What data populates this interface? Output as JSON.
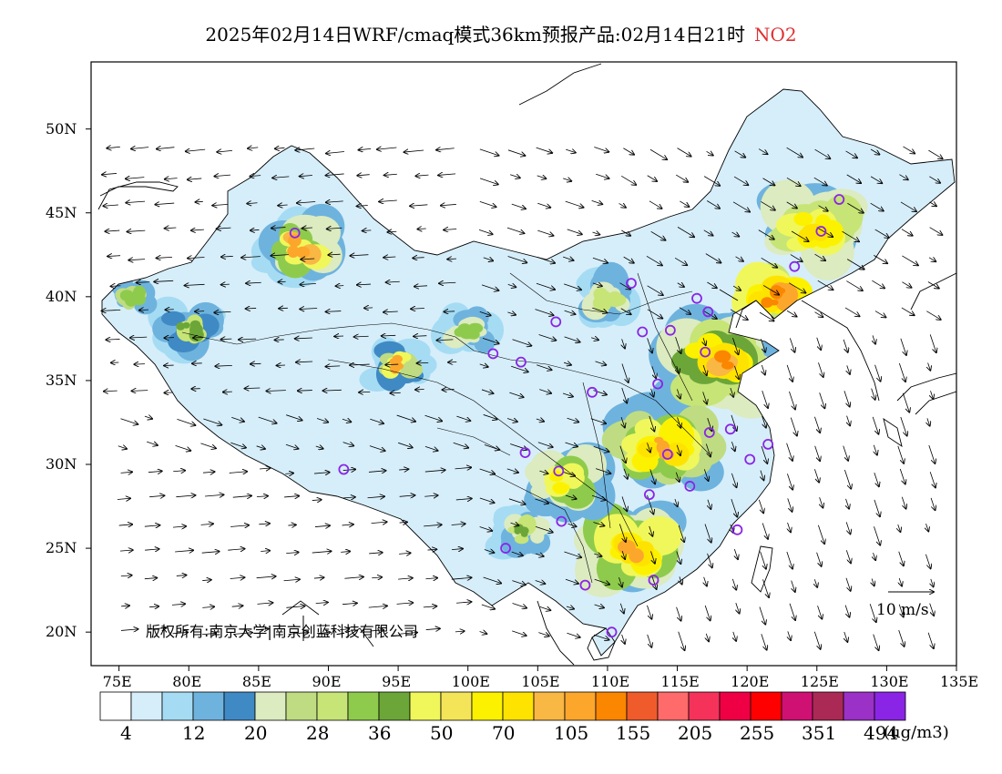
{
  "title": {
    "main": "2025年02月14日WRF/cmaq模式36km预报产品:02月14日21时",
    "species": "NO2"
  },
  "copyright": "版权所有:南京大学|南京创蓝科技有限公司",
  "wind_scale": {
    "label": "10 m/s"
  },
  "colorbar": {
    "unit": "(ug/m3)",
    "colors": [
      "#ffffff",
      "#d6eefa",
      "#a5dcf4",
      "#6eb3de",
      "#3f8ac4",
      "#dcebc0",
      "#bfdc82",
      "#c7e477",
      "#8ecb4c",
      "#6ca638",
      "#f0f75b",
      "#f4e458",
      "#fcf200",
      "#ffe300",
      "#f9b743",
      "#fca72c",
      "#fb8600",
      "#f05b2b",
      "#ff6a6a",
      "#f5335a",
      "#ef0045",
      "#ff0000",
      "#cf1173",
      "#aa2a55",
      "#9b31c6",
      "#8a25e6"
    ],
    "tick_labels": [
      "4",
      "12",
      "20",
      "28",
      "36",
      "50",
      "70",
      "105",
      "155",
      "205",
      "255",
      "351",
      "494"
    ]
  },
  "chart_data": {
    "type": "heatmap",
    "title": "2025年02月14日WRF/cmaq模式36km预报产品:02月14日21时 NO2",
    "variable": "NO2",
    "units": "ug/m3",
    "x_axis": {
      "ticks": [
        "75E",
        "80E",
        "85E",
        "90E",
        "95E",
        "100E",
        "105E",
        "110E",
        "115E",
        "120E",
        "125E",
        "130E",
        "135E"
      ],
      "range": [
        73,
        135
      ]
    },
    "y_axis": {
      "ticks": [
        "20N",
        "25N",
        "30N",
        "35N",
        "40N",
        "45N",
        "50N"
      ],
      "range": [
        18,
        54
      ]
    },
    "colorbar_thresholds": [
      4,
      12,
      20,
      28,
      36,
      50,
      70,
      105,
      155,
      205,
      255,
      351,
      494
    ],
    "wind_reference": "10 m/s",
    "city_markers": [
      {
        "lon": 87.6,
        "lat": 43.8
      },
      {
        "lon": 101.8,
        "lat": 36.6
      },
      {
        "lon": 103.8,
        "lat": 36.1
      },
      {
        "lon": 106.3,
        "lat": 38.5
      },
      {
        "lon": 111.7,
        "lat": 40.8
      },
      {
        "lon": 112.5,
        "lat": 37.9
      },
      {
        "lon": 114.5,
        "lat": 38.0
      },
      {
        "lon": 116.4,
        "lat": 39.9
      },
      {
        "lon": 117.2,
        "lat": 39.1
      },
      {
        "lon": 117.0,
        "lat": 36.7
      },
      {
        "lon": 113.6,
        "lat": 34.8
      },
      {
        "lon": 108.9,
        "lat": 34.3
      },
      {
        "lon": 123.4,
        "lat": 41.8
      },
      {
        "lon": 125.3,
        "lat": 43.9
      },
      {
        "lon": 126.6,
        "lat": 45.8
      },
      {
        "lon": 104.1,
        "lat": 30.7
      },
      {
        "lon": 106.5,
        "lat": 29.6
      },
      {
        "lon": 114.3,
        "lat": 30.6
      },
      {
        "lon": 117.3,
        "lat": 31.9
      },
      {
        "lon": 118.8,
        "lat": 32.1
      },
      {
        "lon": 121.5,
        "lat": 31.2
      },
      {
        "lon": 120.2,
        "lat": 30.3
      },
      {
        "lon": 115.9,
        "lat": 28.7
      },
      {
        "lon": 113.0,
        "lat": 28.2
      },
      {
        "lon": 106.7,
        "lat": 26.6
      },
      {
        "lon": 102.7,
        "lat": 25.0
      },
      {
        "lon": 108.4,
        "lat": 22.8
      },
      {
        "lon": 113.3,
        "lat": 23.1
      },
      {
        "lon": 119.3,
        "lat": 26.1
      },
      {
        "lon": 110.3,
        "lat": 20.0
      },
      {
        "lon": 91.1,
        "lat": 29.7
      }
    ]
  }
}
